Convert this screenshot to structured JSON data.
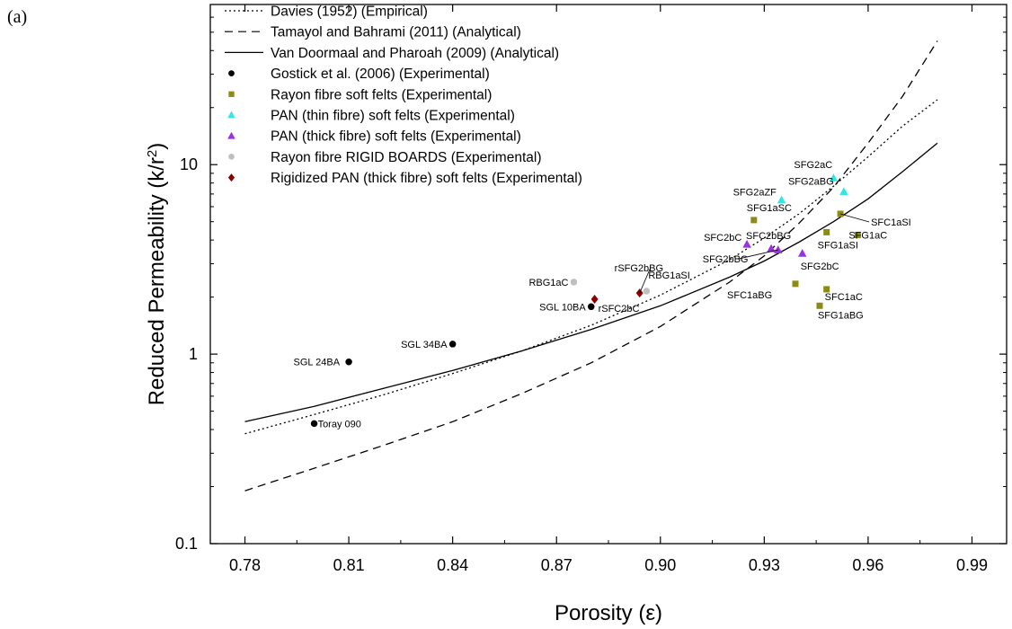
{
  "panel_label": "(a)",
  "chart_data": {
    "type": "scatter",
    "xlabel": "Porosity (ε)",
    "ylabel": "Reduced Permeability (k/r²)",
    "ylabel_base": "Reduced Permeability (k/r",
    "ylabel_sup": "2",
    "ylabel_end": ")",
    "xlim": [
      0.77,
      1.0
    ],
    "ylim": [
      0.1,
      70
    ],
    "yscale": "log",
    "x_ticks": [
      0.78,
      0.81,
      0.84,
      0.87,
      0.9,
      0.93,
      0.96,
      0.99
    ],
    "x_tick_labels": [
      "0.78",
      "0.81",
      "0.84",
      "0.87",
      "0.90",
      "0.93",
      "0.96",
      "0.99"
    ],
    "y_ticks": [
      0.1,
      1,
      10
    ],
    "y_tick_labels": [
      "0.1",
      "1",
      "10"
    ],
    "grid": false,
    "legend_position": "top-left",
    "curves": [
      {
        "name": "Davies (1952) (Empirical)",
        "style": "dotted",
        "x": [
          0.78,
          0.8,
          0.82,
          0.84,
          0.86,
          0.88,
          0.9,
          0.92,
          0.93,
          0.94,
          0.95,
          0.96,
          0.97,
          0.98
        ],
        "y": [
          0.38,
          0.48,
          0.61,
          0.79,
          1.04,
          1.42,
          2.05,
          3.15,
          4.1,
          5.5,
          7.7,
          11.0,
          16.0,
          22.0
        ]
      },
      {
        "name": "Tamayol and Bahrami (2011) (Analytical)",
        "style": "dashed",
        "x": [
          0.78,
          0.8,
          0.82,
          0.84,
          0.86,
          0.88,
          0.9,
          0.92,
          0.93,
          0.94,
          0.95,
          0.96,
          0.97,
          0.98
        ],
        "y": [
          0.19,
          0.25,
          0.33,
          0.44,
          0.62,
          0.9,
          1.4,
          2.4,
          3.3,
          4.9,
          7.6,
          13.0,
          23.0,
          45.0
        ]
      },
      {
        "name": "Van Doormaal and Pharoah (2009) (Analytical)",
        "style": "solid",
        "x": [
          0.78,
          0.8,
          0.82,
          0.84,
          0.86,
          0.88,
          0.9,
          0.92,
          0.93,
          0.94,
          0.95,
          0.96,
          0.97,
          0.98
        ],
        "y": [
          0.44,
          0.53,
          0.66,
          0.82,
          1.04,
          1.35,
          1.8,
          2.55,
          3.1,
          3.9,
          5.0,
          6.6,
          9.2,
          13.0
        ]
      }
    ],
    "series": [
      {
        "name": "Gostick et al. (2006) (Experimental)",
        "marker": "circle",
        "color": "#000000",
        "points": [
          {
            "label": "SGL 24BA",
            "x": 0.81,
            "y": 0.91
          },
          {
            "label": "Toray 090",
            "x": 0.8,
            "y": 0.43
          },
          {
            "label": "SGL 34BA",
            "x": 0.84,
            "y": 1.13
          },
          {
            "label": "SGL 10BA",
            "x": 0.88,
            "y": 1.78
          }
        ]
      },
      {
        "name": "Rayon fibre soft felts (Experimental)",
        "marker": "square",
        "color": "#8c8c14",
        "points": [
          {
            "label": "SFG1aSC",
            "x": 0.927,
            "y": 5.1
          },
          {
            "label": "SFC1aBG",
            "x": 0.939,
            "y": 2.35
          },
          {
            "label": "SFC1aSI",
            "x": 0.952,
            "y": 5.5
          },
          {
            "label": "SFG1aSI",
            "x": 0.948,
            "y": 4.4
          },
          {
            "label": "SFG1aC",
            "x": 0.957,
            "y": 4.25
          },
          {
            "label": "SFC1aC",
            "x": 0.948,
            "y": 2.2
          },
          {
            "label": "SFG1aBG",
            "x": 0.946,
            "y": 1.8
          }
        ]
      },
      {
        "name": "PAN (thin fibre) soft felts (Experimental)",
        "marker": "triangle",
        "color": "#33e6e6",
        "points": [
          {
            "label": "SFG2aZF",
            "x": 0.935,
            "y": 6.5
          },
          {
            "label": "SFG2aC",
            "x": 0.95,
            "y": 8.5
          },
          {
            "label": "SFG2aBG",
            "x": 0.953,
            "y": 7.2
          }
        ]
      },
      {
        "name": "PAN (thick fibre) soft felts (Experimental)",
        "marker": "triangle",
        "color": "#9b30e6",
        "points": [
          {
            "label": "SFC2bC",
            "x": 0.925,
            "y": 3.8
          },
          {
            "label": "SFC2bBG",
            "x": 0.932,
            "y": 3.6
          },
          {
            "label": "SFG2bBG",
            "x": 0.934,
            "y": 3.55
          },
          {
            "label": "SFG2bC",
            "x": 0.941,
            "y": 3.4
          }
        ]
      },
      {
        "name": "Rayon fibre RIGID BOARDS (Experimental)",
        "marker": "circle",
        "color": "#bfbfbf",
        "points": [
          {
            "label": "RBG1aC",
            "x": 0.875,
            "y": 2.4
          },
          {
            "label": "RBG1aSI",
            "x": 0.896,
            "y": 2.15
          }
        ]
      },
      {
        "name": "Rigidized PAN (thick fibre) soft felts (Experimental)",
        "marker": "diamond",
        "color": "#8b0000",
        "points": [
          {
            "label": "rSFG2bBG",
            "x": 0.894,
            "y": 2.1
          },
          {
            "label": "rSFC2bC",
            "x": 0.881,
            "y": 1.95
          }
        ]
      }
    ]
  }
}
